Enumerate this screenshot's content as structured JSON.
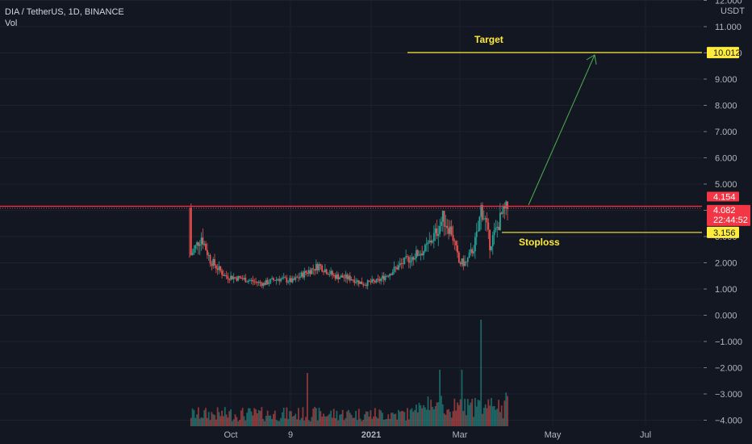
{
  "header": {
    "symbol_line": "DIA / TetherUS, 1D, BINANCE",
    "volume_label": "Vol"
  },
  "colors": {
    "background": "#131722",
    "grid": "#1e222d",
    "up": "#26a69a",
    "down": "#ef5350",
    "annotation": "#ffeb3b",
    "arrow": "#4caf50",
    "resistance": "#f23645"
  },
  "chart_data": {
    "type": "candlestick",
    "currency_label": "USDT",
    "y_ticks": [
      "12.000",
      "11.000",
      "10.000",
      "9.000",
      "8.000",
      "7.000",
      "6.000",
      "5.000",
      "4.000",
      "3.000",
      "2.000",
      "1.000",
      "0.000",
      "−1.000",
      "−2.000",
      "−3.000",
      "−4.000"
    ],
    "ylim": [
      -4.2,
      12.0
    ],
    "x_ticks": [
      "Oct",
      "9",
      "2021",
      "Mar",
      "May",
      "Jul"
    ],
    "grid": true,
    "price_tags": {
      "resistance": "4.154",
      "last_price": "4.082",
      "countdown": "22:44:52",
      "target": "10.012",
      "stoploss": "3.156"
    },
    "levels": {
      "resistance": 4.154,
      "last_price": 4.082,
      "target": 10.012,
      "stoploss": 3.156
    },
    "annotations": {
      "target_label": "Target",
      "stoploss_label": "Stoploss"
    },
    "note": "Daily DIA/USDT candles: spike to ~4.1 at listing, drop to ~2.2, rounded bottom near 1.1-1.6 through Dec-Jan, rally to ~3.7 in Feb, pullback to ~2.2, breakout toward ~4.1 in March; volume bars at bottom with spike in early March."
  }
}
